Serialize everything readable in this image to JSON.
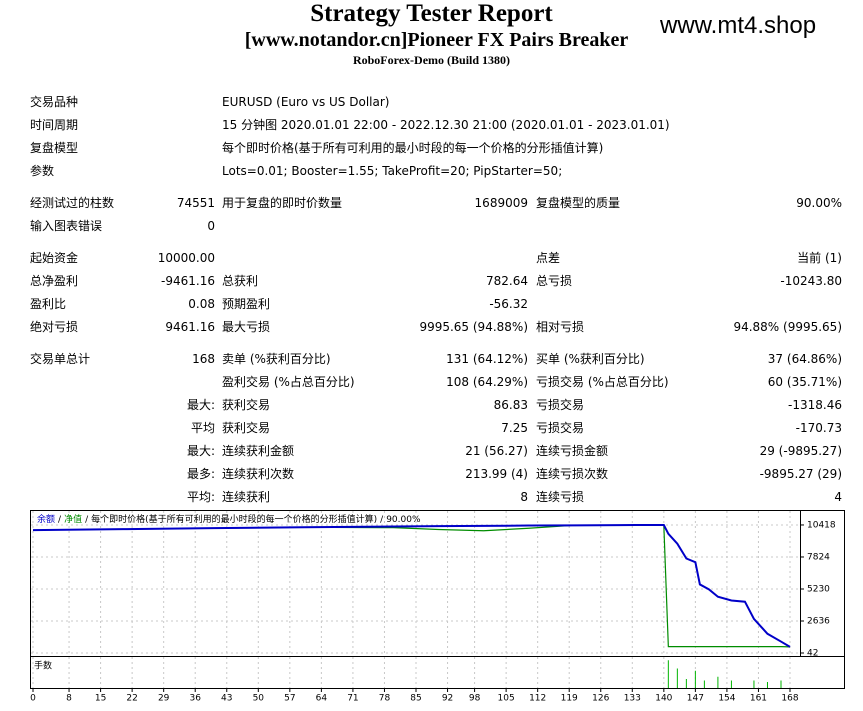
{
  "header": {
    "title": "Strategy Tester Report",
    "subtitle": "[www.notandor.cn]Pioneer FX Pairs Breaker",
    "build": "RoboForex-Demo (Build 1380)",
    "watermark": "www.mt4.shop"
  },
  "report": {
    "sections": [
      [
        [
          "交易品种",
          "EURUSD (Euro vs US Dollar)"
        ],
        [
          "时间周期",
          "15 分钟图 2020.01.01 22:00 - 2022.12.30 21:00 (2020.01.01 - 2023.01.01)"
        ],
        [
          "复盘模型",
          "每个即时价格(基于所有可利用的最小时段的每一个价格的分形插值计算)"
        ],
        [
          "参数",
          "Lots=0.01; Booster=1.55; TakeProfit=20; PipStarter=50;"
        ]
      ],
      [
        [
          "经测试过的柱数",
          "74551",
          "用于复盘的即时价数量",
          "1689009",
          "复盘模型的质量",
          "90.00%"
        ],
        [
          "输入图表错误",
          "0",
          null,
          null,
          null,
          null
        ]
      ],
      [
        [
          "起始资金",
          "10000.00",
          null,
          null,
          "点差",
          "当前 (1)"
        ],
        [
          "总净盈利",
          "-9461.16",
          "总获利",
          "782.64",
          "总亏损",
          "-10243.80"
        ],
        [
          "盈利比",
          "0.08",
          "预期盈利",
          "-56.32",
          null,
          null
        ],
        [
          "绝对亏损",
          "9461.16",
          "最大亏损",
          "9995.65 (94.88%)",
          "相对亏损",
          "94.88% (9995.65)"
        ]
      ],
      [
        [
          "交易单总计",
          "168",
          "卖单 (%获利百分比)",
          "131 (64.12%)",
          "买单 (%获利百分比)",
          "37 (64.86%)"
        ],
        [
          null,
          null,
          "盈利交易 (%占总百分比)",
          "108 (64.29%)",
          "亏损交易 (%占总百分比)",
          "60 (35.71%)"
        ],
        [
          null,
          "最大:",
          "获利交易",
          "86.83",
          "亏损交易",
          "-1318.46"
        ],
        [
          null,
          "平均",
          "获利交易",
          "7.25",
          "亏损交易",
          "-170.73"
        ],
        [
          null,
          "最大:",
          "连续获利金额",
          "21 (56.27)",
          "连续亏损金额",
          "29 (-9895.27)"
        ],
        [
          null,
          "最多:",
          "连续获利次数",
          "213.99 (4)",
          "连续亏损次数",
          "-9895.27 (29)"
        ],
        [
          null,
          "平均:",
          "连续获利",
          "8",
          "连续亏损",
          "4"
        ]
      ]
    ]
  },
  "chart_data": [
    {
      "type": "line",
      "legend_separator": "/",
      "legend_note": "每个即时价格(基于所有可利用的最小时段的每一个价格的分形插值计算)",
      "quality": "90.00%",
      "x": [
        0,
        20,
        40,
        60,
        80,
        90,
        100,
        110,
        120,
        130,
        140,
        141,
        143,
        145,
        147,
        148,
        150,
        152,
        155,
        158,
        160,
        163,
        166,
        168
      ],
      "series": [
        {
          "name": "余额",
          "color": "#0000c8",
          "values": [
            10000,
            10080,
            10160,
            10230,
            10290,
            10320,
            10340,
            10370,
            10390,
            10410,
            10418,
            9700,
            8900,
            7700,
            7400,
            5600,
            5200,
            4600,
            4300,
            4200,
            2800,
            1600,
            970,
            540
          ]
        },
        {
          "name": "净值",
          "color": "#008c00",
          "values": [
            10000,
            10080,
            10160,
            10230,
            10200,
            10050,
            9950,
            10150,
            10390,
            10410,
            10380,
            560,
            560,
            560,
            560,
            560,
            560,
            560,
            560,
            560,
            560,
            560,
            560,
            540
          ]
        }
      ],
      "xlim": [
        0,
        168
      ],
      "ylim": [
        -200,
        11550
      ],
      "xticks": [
        0,
        8,
        15,
        22,
        29,
        36,
        43,
        50,
        57,
        64,
        71,
        78,
        85,
        92,
        98,
        105,
        112,
        119,
        126,
        133,
        140,
        147,
        154,
        161,
        168
      ],
      "yticks": [
        10418,
        7824,
        5230,
        2636,
        42
      ],
      "grid": true
    },
    {
      "type": "bar",
      "title": "手数",
      "color": "#00b400",
      "x": [
        141,
        143,
        145,
        147,
        149,
        152,
        155,
        160,
        163,
        166
      ],
      "values": [
        0.37,
        0.26,
        0.12,
        0.23,
        0.1,
        0.15,
        0.1,
        0.1,
        0.08,
        0.1
      ],
      "ylim": [
        0,
        0.4
      ]
    }
  ]
}
